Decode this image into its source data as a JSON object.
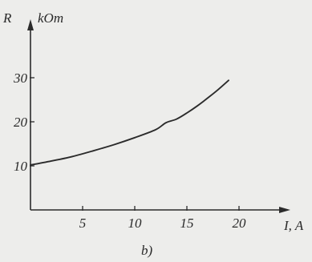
{
  "chart_data": {
    "type": "line",
    "ylabel_symbol": "R",
    "ylabel_unit": "kOm",
    "xlabel": "I, A",
    "caption": "b)",
    "x_ticks": [
      "5",
      "10",
      "15",
      "20"
    ],
    "y_ticks": [
      "10",
      "20",
      "30"
    ],
    "xlim": [
      0,
      25
    ],
    "ylim": [
      0,
      40
    ],
    "grid": false,
    "series": [
      {
        "x": [
          0,
          2,
          4,
          6,
          8,
          10,
          12,
          13,
          14,
          15,
          16,
          17,
          18,
          19
        ],
        "y": [
          10.2,
          11.1,
          12.1,
          13.4,
          14.8,
          16.4,
          18.2,
          19.8,
          20.6,
          22.0,
          23.6,
          25.4,
          27.3,
          29.4
        ]
      }
    ],
    "colors": {
      "line": "#2b2b2b",
      "axes": "#2b2b2b",
      "background": "#ededeb"
    }
  }
}
